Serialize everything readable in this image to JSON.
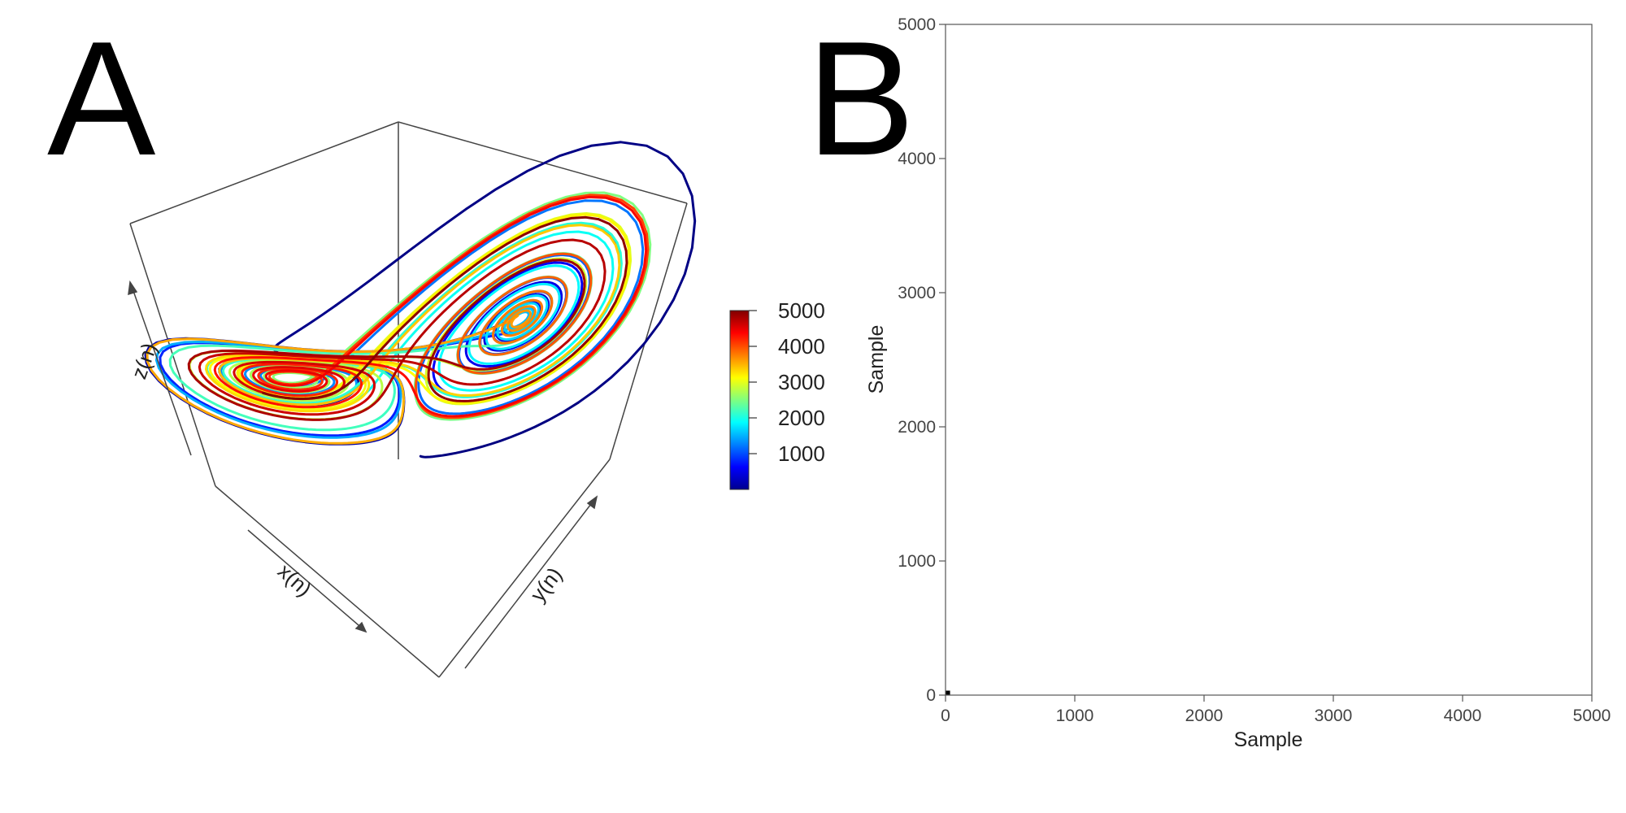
{
  "panels": {
    "a_label": "A",
    "b_label": "B"
  },
  "chart_data": [
    {
      "type": "line",
      "projection": "3d",
      "title": "",
      "xlabel": "x(n)",
      "ylabel": "y(n)",
      "zlabel": "z(n)",
      "colorbar": {
        "colormap": "jet",
        "range": [
          0,
          5000
        ],
        "ticks": [
          1000,
          2000,
          3000,
          4000,
          5000
        ],
        "tick_labels": [
          "1000",
          "2000",
          "3000",
          "4000",
          "5000"
        ]
      },
      "series": [
        {
          "values": "trajectory samples 1–5000 colored by sample index"
        }
      ],
      "colors": {
        "box": "#444444",
        "low": "#00008f",
        "mid": "#7fff7f",
        "high": "#800000"
      }
    },
    {
      "type": "heatmap",
      "subtype": "recurrence_plot",
      "title": "",
      "xlabel": "Sample",
      "ylabel": "Sample",
      "xlim": [
        0,
        5000
      ],
      "ylim": [
        0,
        5000
      ],
      "xticks": [
        "0",
        "1000",
        "2000",
        "3000",
        "4000",
        "5000"
      ],
      "yticks": [
        "0",
        "1000",
        "2000",
        "3000",
        "4000",
        "5000"
      ],
      "grid": false,
      "colors": {
        "recurrence": "#000000",
        "background": "#ffffff"
      }
    }
  ]
}
